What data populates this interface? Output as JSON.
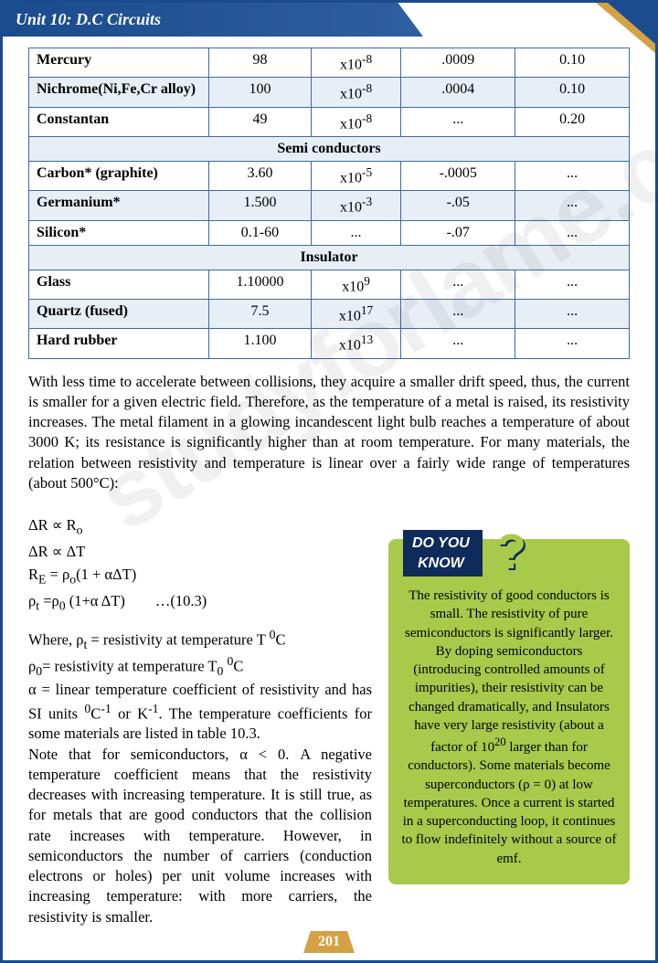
{
  "header": {
    "title": "Unit 10: D.C Circuits"
  },
  "table": {
    "rows": [
      {
        "alt": false,
        "name": "Mercury",
        "c1": "98",
        "c2": "x10<sup>-8</sup>",
        "c3": ".0009",
        "c4": "0.10"
      },
      {
        "alt": true,
        "name": "Nichrome(Ni,Fe,Cr alloy)",
        "c1": "100",
        "c2": "x10<sup>-8</sup>",
        "c3": ".0004",
        "c4": "0.10"
      },
      {
        "alt": false,
        "name": "Constantan",
        "c1": "49",
        "c2": "x10<sup>-8</sup>",
        "c3": "...",
        "c4": "0.20"
      },
      {
        "section": "Semi conductors"
      },
      {
        "alt": false,
        "name": "Carbon* (graphite)",
        "c1": "3.60",
        "c2": "x10<sup>-5</sup>",
        "c3": "-.0005",
        "c4": "..."
      },
      {
        "alt": true,
        "name": "Germanium*",
        "c1": "1.500",
        "c2": "x10<sup>-3</sup>",
        "c3": "-.05",
        "c4": "..."
      },
      {
        "alt": false,
        "name": "Silicon*",
        "c1": "0.1-60",
        "c2": "...",
        "c3": "-.07",
        "c4": "..."
      },
      {
        "section": "Insulator"
      },
      {
        "alt": false,
        "name": "Glass",
        "c1": "1.10000",
        "c2": "x10<sup>9</sup>",
        "c3": "...",
        "c4": "..."
      },
      {
        "alt": true,
        "name": "Quartz (fused)",
        "c1": "7.5",
        "c2": "x10<sup>17</sup>",
        "c3": "...",
        "c4": "..."
      },
      {
        "alt": false,
        "name": "Hard rubber",
        "c1": "1.100",
        "c2": "x10<sup>13</sup>",
        "c3": "...",
        "c4": "..."
      }
    ]
  },
  "paragraph1": "With less time to accelerate between collisions, they acquire a smaller drift speed, thus, the current is smaller for a given electric field. Therefore, as the temperature of a metal is raised, its resistivity increases. The metal filament in a glowing incandescent light bulb reaches a temperature of about 3000 K; its resistance is significantly higher than at room temperature. For many materials, the relation between resistivity and temperature is linear over a fairly wide range of temperatures (about 500°C):",
  "equations": [
    "ΔR ∝ R<sub>o</sub>",
    "ΔR ∝ ΔT",
    "R<sub>E</sub> = ρ<sub>o</sub>(1 + αΔT)",
    "ρ<sub>t</sub> =ρ<sub>0</sub> (1+α ΔT)&nbsp;&nbsp;&nbsp;&nbsp;&nbsp;&nbsp;&nbsp;&nbsp;…(10.3)"
  ],
  "paragraph2": "Where, ρ<sub>t</sub> = resistivity at temperature T <sup>0</sup>C<br>ρ<sub>0</sub>= resistivity at temperature T<sub>0</sub> <sup>0</sup>C<br>α = linear temperature coefficient of resistivity and has SI units <sup>0</sup>C<sup>-1</sup> or K<sup>-1</sup>. The temperature coefficients for some materials are listed in table 10.3.<br>Note that for semiconductors, α &lt; 0. A negative temperature coefficient means that the resistivity decreases with increasing temperature. It is still true, as for metals that are good conductors that the collision rate increases with temperature. However, in semiconductors the number of carriers (conduction electrons or holes) per unit volume increases with increasing temperature: with more carriers, the resistivity is smaller.",
  "sidebar": {
    "label": "DO YOU",
    "sub": "KNOW",
    "text": "The resistivity of good conductors is small. The resistivity of pure semiconductors is significantly larger. By doping semiconductors (introducing controlled amounts of impurities), their resistivity can be changed dramatically, and Insulators have very large resistivity (about a factor of 10<sup>20</sup> larger than for conductors). Some materials become superconductors (ρ = 0) at low temperatures. Once a current is started in a superconducting loop, it continues to flow indefinitely without a source of emf."
  },
  "pagenum": "201",
  "watermark": "studyforlame.com",
  "colors": {
    "border": "#1a4b8c",
    "header_grad_from": "#1a4b8c",
    "header_grad_to": "#2e5fa0",
    "row_alt": "#e8eef5",
    "sidebar_bg": "#a8c94a",
    "dyk_bg": "#0e2b5c",
    "accent": "#d4a244"
  }
}
